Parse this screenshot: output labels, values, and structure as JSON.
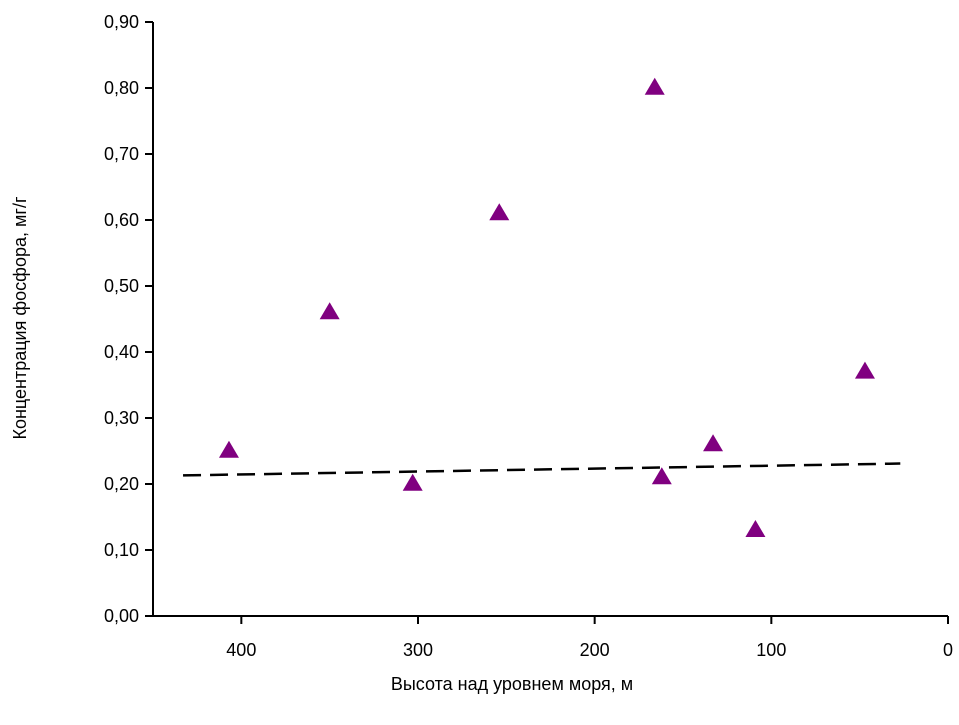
{
  "chart_data": {
    "type": "scatter",
    "title": "",
    "xlabel": "Высота над уровнем моря,  м",
    "ylabel": "Концентрация фосфора,  мг/г",
    "xlim": [
      450,
      0
    ],
    "ylim": [
      0,
      0.9
    ],
    "x_reversed": true,
    "x_ticks": [
      400,
      300,
      200,
      100,
      0
    ],
    "x_tick_labels": [
      "400",
      "300",
      "200",
      "100",
      "0"
    ],
    "y_ticks": [
      0,
      0.1,
      0.2,
      0.3,
      0.4,
      0.5,
      0.6,
      0.7,
      0.8,
      0.9
    ],
    "y_tick_labels": [
      "0,00",
      "0,10",
      "0,20",
      "0,30",
      "0,40",
      "0,50",
      "0,60",
      "0,70",
      "0,80",
      "0,90"
    ],
    "grid": false,
    "legend": "none",
    "series": [
      {
        "marker": "triangle",
        "color": "#800080",
        "points": [
          {
            "x": 407,
            "y": 0.25
          },
          {
            "x": 350,
            "y": 0.46
          },
          {
            "x": 303,
            "y": 0.2
          },
          {
            "x": 254,
            "y": 0.61
          },
          {
            "x": 166,
            "y": 0.8
          },
          {
            "x": 162,
            "y": 0.21
          },
          {
            "x": 133,
            "y": 0.26
          },
          {
            "x": 109,
            "y": 0.13
          },
          {
            "x": 47,
            "y": 0.37
          }
        ]
      }
    ],
    "trendline": {
      "style": "dashed",
      "color": "#000000",
      "x": [
        433,
        27
      ],
      "y": [
        0.213,
        0.231
      ]
    }
  }
}
